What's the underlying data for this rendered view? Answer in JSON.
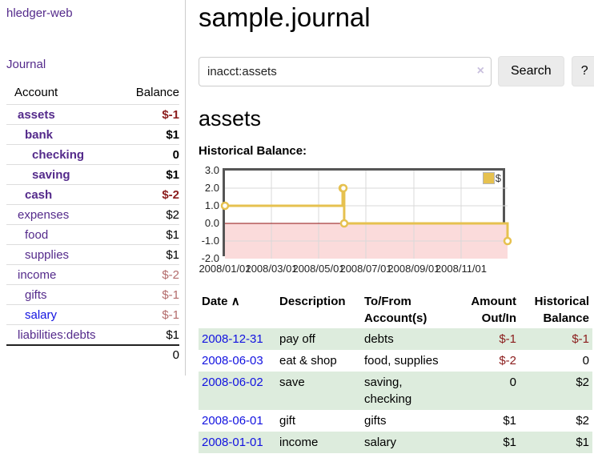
{
  "colors": {
    "link-purple": "#542a8b",
    "link-blue": "#1212e0",
    "neg-strong": "#8b1c1c",
    "neg-soft": "#b36b6b",
    "row-green": "#ddecdd",
    "btn-bg": "#ebebeb",
    "border-gray": "#cccccc",
    "chart-gold": "#e6c14f",
    "chart-pink": "#fbdbdb",
    "chart-zero": "#8f1010",
    "chart-frame": "#555555",
    "chart-grid": "#d9d9d9"
  },
  "icons": {
    "sort_asc": "∧",
    "clear_search": "×"
  },
  "app": {
    "brand": "hledger-web",
    "nav_journal": "Journal"
  },
  "sidebar": {
    "headers": {
      "account": "Account",
      "balance": "Balance"
    },
    "accounts": [
      {
        "label": "assets",
        "balance": "$-1",
        "indent": 1,
        "emph": true,
        "link": "purple",
        "bal_class": "neg"
      },
      {
        "label": "bank",
        "balance": "$1",
        "indent": 2,
        "emph": true,
        "link": "purple",
        "bal_class": ""
      },
      {
        "label": "checking",
        "balance": "0",
        "indent": 3,
        "emph": true,
        "link": "purple",
        "bal_class": ""
      },
      {
        "label": "saving",
        "balance": "$1",
        "indent": 3,
        "emph": true,
        "link": "purple",
        "bal_class": ""
      },
      {
        "label": "cash",
        "balance": "$-2",
        "indent": 2,
        "emph": true,
        "link": "purple",
        "bal_class": "neg"
      },
      {
        "label": "expenses",
        "balance": "$2",
        "indent": 1,
        "emph": false,
        "link": "purple",
        "bal_class": ""
      },
      {
        "label": "food",
        "balance": "$1",
        "indent": 2,
        "emph": false,
        "link": "purple",
        "bal_class": ""
      },
      {
        "label": "supplies",
        "balance": "$1",
        "indent": 2,
        "emph": false,
        "link": "purple",
        "bal_class": ""
      },
      {
        "label": "income",
        "balance": "$-2",
        "indent": 1,
        "emph": false,
        "link": "purple",
        "bal_class": "soft"
      },
      {
        "label": "gifts",
        "balance": "$-1",
        "indent": 2,
        "emph": false,
        "link": "purple",
        "bal_class": "soft"
      },
      {
        "label": "salary",
        "balance": "$-1",
        "indent": 2,
        "emph": false,
        "link": "blue",
        "bal_class": "soft"
      },
      {
        "label": "liabilities:debts",
        "balance": "$1",
        "indent": 1,
        "emph": false,
        "link": "purple",
        "bal_class": ""
      }
    ],
    "total": "0"
  },
  "main": {
    "title": "sample.journal",
    "search": {
      "value": "inacct:assets",
      "button": "Search",
      "help": "?"
    },
    "account_title": "assets",
    "chart_label": "Historical Balance:"
  },
  "chart_data": {
    "type": "line",
    "title": "Historical Balance:",
    "step": true,
    "xlim": [
      "2008-01-01",
      "2008-12-31"
    ],
    "ylim": [
      -2,
      3
    ],
    "y_ticks": [
      3.0,
      2.0,
      1.0,
      0.0,
      -1.0,
      -2.0
    ],
    "x_ticks": [
      {
        "t": "2008-01-01",
        "label": "2008/01/01"
      },
      {
        "t": "2008-03-01",
        "label": "2008/03/01"
      },
      {
        "t": "2008-05-01",
        "label": "2008/05/01"
      },
      {
        "t": "2008-07-01",
        "label": "2008/07/01"
      },
      {
        "t": "2008-09-01",
        "label": "2008/09/01"
      },
      {
        "t": "2008-11-01",
        "label": "2008/11/01"
      }
    ],
    "series": [
      {
        "name": "$",
        "points": [
          [
            "2008-01-01",
            1
          ],
          [
            "2008-06-01",
            2
          ],
          [
            "2008-06-02",
            2
          ],
          [
            "2008-06-03",
            0
          ],
          [
            "2008-12-31",
            -1
          ]
        ]
      }
    ],
    "legend_position": "top-right",
    "grid": true,
    "negative_region": true
  },
  "register": {
    "headers": {
      "date": "Date",
      "description": "Description",
      "accounts": "To/From Account(s)",
      "amount": "Amount Out/In",
      "balance": "Historical Balance"
    },
    "rows": [
      {
        "date": "2008-12-31",
        "description": "pay off",
        "accounts": "debts",
        "amount": "$-1",
        "amount_neg": true,
        "balance": "$-1",
        "balance_neg": true
      },
      {
        "date": "2008-06-03",
        "description": "eat & shop",
        "accounts": "food, supplies",
        "amount": "$-2",
        "amount_neg": true,
        "balance": "0",
        "balance_neg": false
      },
      {
        "date": "2008-06-02",
        "description": "save",
        "accounts": "saving, checking",
        "amount": "0",
        "amount_neg": false,
        "balance": "$2",
        "balance_neg": false
      },
      {
        "date": "2008-06-01",
        "description": "gift",
        "accounts": "gifts",
        "amount": "$1",
        "amount_neg": false,
        "balance": "$2",
        "balance_neg": false
      },
      {
        "date": "2008-01-01",
        "description": "income",
        "accounts": "salary",
        "amount": "$1",
        "amount_neg": false,
        "balance": "$1",
        "balance_neg": false
      }
    ]
  }
}
